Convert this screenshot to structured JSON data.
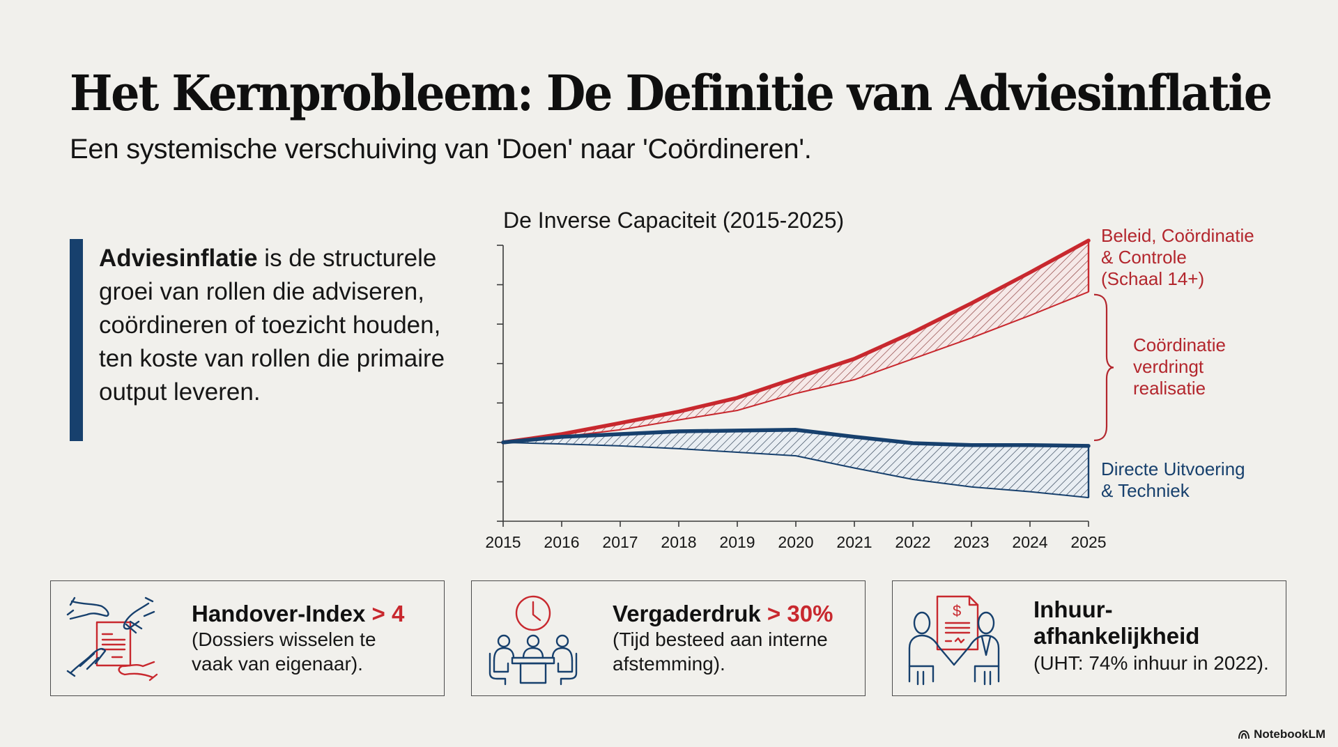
{
  "title": "Het Kernprobleem: De Definitie van Adviesinflatie",
  "subtitle": "Een systemische verschuiving van 'Doen' naar 'Coördineren'.",
  "definition": {
    "term": "Adviesinflatie",
    "text": " is de structurele groei van rollen die adviseren, coördineren of toezicht houden, ten koste van rollen die primaire output leveren."
  },
  "colors": {
    "accent_red": "#c8282e",
    "accent_blue": "#17406d",
    "background": "#f1f0ec"
  },
  "chart_data": {
    "type": "area",
    "title": "De Inverse Capaciteit (2015-2025)",
    "xlabel": "",
    "ylabel": "",
    "x": [
      2015,
      2016,
      2017,
      2018,
      2019,
      2020,
      2021,
      2022,
      2023,
      2024,
      2025
    ],
    "ylim": [
      -2,
      5
    ],
    "yticks": [
      -2,
      -1,
      0,
      1,
      2,
      3,
      4,
      5
    ],
    "ytick_labels_shown": false,
    "grid": false,
    "series": [
      {
        "name": "Beleid, Coördinatie & Controle (Schaal 14+)",
        "color": "#c8282e",
        "upper": [
          0,
          0.21,
          0.49,
          0.78,
          1.13,
          1.63,
          2.12,
          2.79,
          3.53,
          4.31,
          5.12
        ],
        "lower": [
          0,
          0.14,
          0.32,
          0.57,
          0.81,
          1.24,
          1.59,
          2.12,
          2.65,
          3.22,
          3.82
        ]
      },
      {
        "name": "Directe Uitvoering & Techniek",
        "color": "#17406d",
        "upper": [
          0,
          0.14,
          0.21,
          0.28,
          0.3,
          0.32,
          0.14,
          -0.02,
          -0.07,
          -0.07,
          -0.09
        ],
        "lower": [
          0,
          -0.04,
          -0.09,
          -0.16,
          -0.25,
          -0.34,
          -0.65,
          -0.94,
          -1.13,
          -1.25,
          -1.4
        ]
      }
    ],
    "annotations": [
      {
        "text": "Beleid, Coördinatie & Controle (Schaal 14+)",
        "lines": [
          "Beleid, Coördinatie",
          "& Controle",
          "(Schaal 14+)"
        ],
        "color": "#b3262d",
        "placement": "right-top"
      },
      {
        "text": "Coördinatie verdringt realisatie",
        "lines": [
          "Coördinatie",
          "verdringt",
          "realisatie"
        ],
        "color": "#b3262d",
        "placement": "right-middle-brace"
      },
      {
        "text": "Directe Uitvoering & Techniek",
        "lines": [
          "Directe Uitvoering",
          "& Techniek"
        ],
        "color": "#17406d",
        "placement": "right-bottom"
      }
    ]
  },
  "cards": [
    {
      "icon": "handover-hands-icon",
      "head": "Handover-Index",
      "accent": " > 4",
      "desc_lines": [
        "(Dossiers wisselen te",
        "vaak van eigenaar)."
      ]
    },
    {
      "icon": "meeting-clock-icon",
      "head": "Vergaderdruk",
      "accent": " > 30%",
      "desc_lines": [
        "(Tijd besteed aan interne",
        "afstemming)."
      ]
    },
    {
      "icon": "contract-handshake-icon",
      "head_lines": [
        "Inhuur-",
        "afhankelijkheid"
      ],
      "desc_lines": [
        "(UHT: 74% inhuur in 2022)."
      ]
    }
  ],
  "footer": {
    "brand": "NotebookLM",
    "icon": "notebooklm-logo-icon"
  }
}
